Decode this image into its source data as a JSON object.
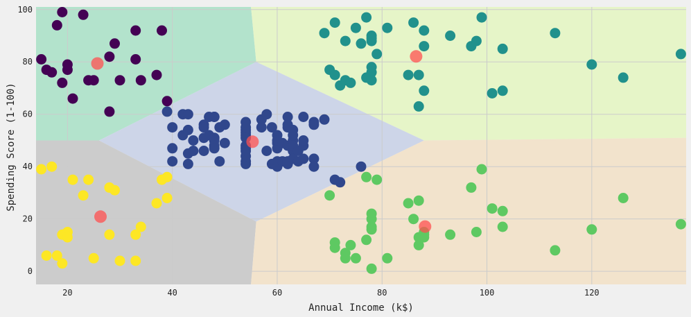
{
  "chart_data": {
    "type": "scatter",
    "xlabel": "Annual Income (k$)",
    "ylabel": "Spending Score (1-100)",
    "xlim": [
      14,
      138
    ],
    "ylim": [
      -5,
      101
    ],
    "xticks": [
      20,
      40,
      60,
      80,
      100,
      120
    ],
    "yticks": [
      0,
      20,
      40,
      60,
      80,
      100
    ],
    "grid": true,
    "background": "#f0f0f0",
    "regions": [
      {
        "color": "#b3e3cc",
        "vertices": [
          [
            14,
            50
          ],
          [
            26,
            50
          ],
          [
            56,
            80
          ],
          [
            55,
            101
          ],
          [
            14,
            101
          ]
        ]
      },
      {
        "color": "#e6f5c8",
        "vertices": [
          [
            55,
            101
          ],
          [
            138,
            101
          ],
          [
            138,
            51
          ],
          [
            88,
            50
          ],
          [
            56,
            80
          ]
        ]
      },
      {
        "color": "#cdd5e8",
        "vertices": [
          [
            26,
            50
          ],
          [
            56,
            80
          ],
          [
            88,
            50
          ],
          [
            56,
            19
          ]
        ]
      },
      {
        "color": "#cccccc",
        "vertices": [
          [
            14,
            -5
          ],
          [
            14,
            50
          ],
          [
            26,
            50
          ],
          [
            56,
            19
          ],
          [
            55,
            -5
          ]
        ]
      },
      {
        "color": "#f2e3cc",
        "vertices": [
          [
            55,
            -5
          ],
          [
            56,
            19
          ],
          [
            88,
            50
          ],
          [
            138,
            51
          ],
          [
            138,
            -5
          ]
        ]
      }
    ],
    "series": [
      {
        "color": "#440154",
        "points": [
          [
            15,
            81
          ],
          [
            16,
            77
          ],
          [
            17,
            76
          ],
          [
            18,
            94
          ],
          [
            19,
            72
          ],
          [
            19,
            99
          ],
          [
            20,
            77
          ],
          [
            20,
            79
          ],
          [
            21,
            66
          ],
          [
            23,
            98
          ],
          [
            24,
            73
          ],
          [
            25,
            73
          ],
          [
            28,
            82
          ],
          [
            28,
            61
          ],
          [
            29,
            87
          ],
          [
            30,
            73
          ],
          [
            33,
            92
          ],
          [
            33,
            81
          ],
          [
            34,
            73
          ],
          [
            37,
            75
          ],
          [
            38,
            92
          ],
          [
            39,
            65
          ]
        ]
      },
      {
        "color": "#30478c",
        "points": [
          [
            39,
            61
          ],
          [
            40,
            55
          ],
          [
            40,
            47
          ],
          [
            40,
            42
          ],
          [
            42,
            52
          ],
          [
            42,
            60
          ],
          [
            43,
            54
          ],
          [
            43,
            60
          ],
          [
            43,
            45
          ],
          [
            43,
            41
          ],
          [
            44,
            46
          ],
          [
            44,
            50
          ],
          [
            46,
            51
          ],
          [
            46,
            46
          ],
          [
            46,
            56
          ],
          [
            46,
            55
          ],
          [
            47,
            52
          ],
          [
            47,
            59
          ],
          [
            48,
            51
          ],
          [
            48,
            59
          ],
          [
            48,
            50
          ],
          [
            48,
            48
          ],
          [
            48,
            59
          ],
          [
            48,
            47
          ],
          [
            49,
            55
          ],
          [
            49,
            42
          ],
          [
            50,
            49
          ],
          [
            50,
            56
          ],
          [
            54,
            47
          ],
          [
            54,
            54
          ],
          [
            54,
            53
          ],
          [
            54,
            48
          ],
          [
            54,
            52
          ],
          [
            54,
            42
          ],
          [
            54,
            51
          ],
          [
            54,
            55
          ],
          [
            54,
            41
          ],
          [
            54,
            44
          ],
          [
            54,
            57
          ],
          [
            54,
            46
          ],
          [
            57,
            58
          ],
          [
            57,
            55
          ],
          [
            58,
            60
          ],
          [
            58,
            46
          ],
          [
            59,
            55
          ],
          [
            59,
            41
          ],
          [
            60,
            49
          ],
          [
            60,
            40
          ],
          [
            60,
            42
          ],
          [
            60,
            52
          ],
          [
            60,
            47
          ],
          [
            60,
            50
          ],
          [
            61,
            42
          ],
          [
            61,
            49
          ],
          [
            62,
            41
          ],
          [
            62,
            48
          ],
          [
            62,
            59
          ],
          [
            62,
            55
          ],
          [
            62,
            56
          ],
          [
            62,
            42
          ],
          [
            63,
            50
          ],
          [
            63,
            46
          ],
          [
            63,
            43
          ],
          [
            63,
            48
          ],
          [
            63,
            52
          ],
          [
            63,
            54
          ],
          [
            64,
            42
          ],
          [
            64,
            46
          ],
          [
            65,
            48
          ],
          [
            65,
            50
          ],
          [
            65,
            43
          ],
          [
            65,
            59
          ],
          [
            67,
            43
          ],
          [
            67,
            57
          ],
          [
            67,
            56
          ],
          [
            67,
            40
          ],
          [
            69,
            58
          ],
          [
            71,
            35
          ],
          [
            72,
            34
          ],
          [
            76,
            40
          ]
        ]
      },
      {
        "color": "#21918c",
        "points": [
          [
            69,
            91
          ],
          [
            70,
            77
          ],
          [
            71,
            95
          ],
          [
            71,
            75
          ],
          [
            72,
            71
          ],
          [
            73,
            88
          ],
          [
            73,
            73
          ],
          [
            74,
            72
          ],
          [
            75,
            93
          ],
          [
            76,
            87
          ],
          [
            77,
            97
          ],
          [
            77,
            74
          ],
          [
            78,
            90
          ],
          [
            78,
            88
          ],
          [
            78,
            76
          ],
          [
            78,
            89
          ],
          [
            78,
            78
          ],
          [
            78,
            73
          ],
          [
            79,
            83
          ],
          [
            81,
            93
          ],
          [
            85,
            75
          ],
          [
            86,
            95
          ],
          [
            87,
            63
          ],
          [
            87,
            75
          ],
          [
            88,
            92
          ],
          [
            88,
            86
          ],
          [
            88,
            69
          ],
          [
            93,
            90
          ],
          [
            97,
            86
          ],
          [
            98,
            88
          ],
          [
            99,
            97
          ],
          [
            101,
            68
          ],
          [
            103,
            85
          ],
          [
            103,
            69
          ],
          [
            113,
            91
          ],
          [
            120,
            79
          ],
          [
            126,
            74
          ],
          [
            137,
            83
          ]
        ]
      },
      {
        "color": "#5ec962",
        "points": [
          [
            70,
            29
          ],
          [
            71,
            11
          ],
          [
            71,
            9
          ],
          [
            73,
            5
          ],
          [
            73,
            7
          ],
          [
            74,
            10
          ],
          [
            75,
            5
          ],
          [
            77,
            12
          ],
          [
            77,
            36
          ],
          [
            78,
            22
          ],
          [
            78,
            17
          ],
          [
            78,
            20
          ],
          [
            78,
            16
          ],
          [
            78,
            1
          ],
          [
            79,
            35
          ],
          [
            81,
            5
          ],
          [
            85,
            26
          ],
          [
            86,
            20
          ],
          [
            87,
            27
          ],
          [
            87,
            13
          ],
          [
            87,
            10
          ],
          [
            88,
            13
          ],
          [
            88,
            15
          ],
          [
            88,
            14
          ],
          [
            93,
            14
          ],
          [
            97,
            32
          ],
          [
            98,
            15
          ],
          [
            99,
            39
          ],
          [
            101,
            24
          ],
          [
            103,
            17
          ],
          [
            103,
            23
          ],
          [
            113,
            8
          ],
          [
            120,
            16
          ],
          [
            126,
            28
          ],
          [
            137,
            18
          ]
        ]
      },
      {
        "color": "#fde725",
        "points": [
          [
            15,
            39
          ],
          [
            16,
            6
          ],
          [
            17,
            40
          ],
          [
            18,
            6
          ],
          [
            19,
            3
          ],
          [
            19,
            14
          ],
          [
            20,
            15
          ],
          [
            20,
            13
          ],
          [
            21,
            35
          ],
          [
            23,
            29
          ],
          [
            24,
            35
          ],
          [
            25,
            5
          ],
          [
            28,
            14
          ],
          [
            28,
            32
          ],
          [
            29,
            31
          ],
          [
            30,
            4
          ],
          [
            33,
            4
          ],
          [
            33,
            14
          ],
          [
            34,
            17
          ],
          [
            37,
            26
          ],
          [
            38,
            35
          ],
          [
            39,
            36
          ],
          [
            39,
            28
          ]
        ]
      }
    ],
    "centroids": {
      "color": "#ff5050",
      "points": [
        [
          25.7,
          79.4
        ],
        [
          55.3,
          49.5
        ],
        [
          86.5,
          82.1
        ],
        [
          88.2,
          17.1
        ],
        [
          26.3,
          20.9
        ]
      ]
    }
  }
}
